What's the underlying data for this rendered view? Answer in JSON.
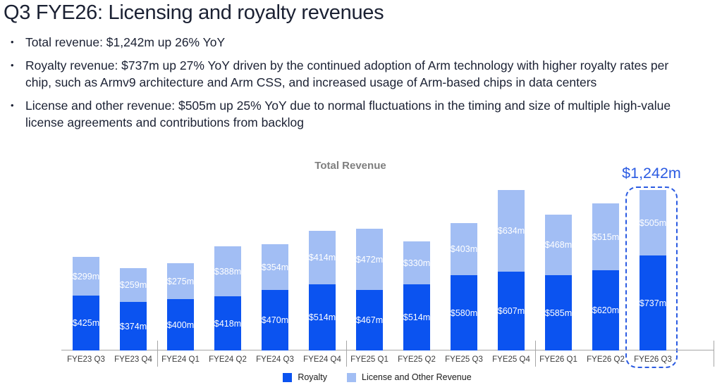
{
  "title": "Q3 FYE26: Licensing and royalty revenues",
  "bullets": [
    "Total revenue: $1,242m up 26% YoY",
    "Royalty revenue: $737m up 27% YoY driven by the continued adoption of Arm technology with higher royalty rates per chip, such as Armv9 architecture and Arm CSS, and increased usage of Arm-based chips in data centers",
    "License and other revenue: $505m up 25% YoY due to normal fluctuations in the timing and size of multiple high-value license agreements and contributions from backlog"
  ],
  "colors": {
    "text": "#1b2133",
    "accent_blue": "#2b5be2",
    "chart_title_gray": "#7f7f7f",
    "axis_gray": "#a6a6a6",
    "value_label": "#ffffff"
  },
  "chart_data": {
    "type": "bar",
    "stacked": true,
    "title": "Total Revenue",
    "categories": [
      "FYE23 Q3",
      "FYE23 Q4",
      "FYE24 Q1",
      "FYE24 Q2",
      "FYE24 Q3",
      "FYE24 Q4",
      "FYE25 Q1",
      "FYE25 Q2",
      "FYE25 Q3",
      "FYE25 Q4",
      "FYE26 Q1",
      "FYE26 Q2",
      "FYE26 Q3"
    ],
    "series": [
      {
        "name": "Royalty",
        "color": "#0b53f0",
        "values": [
          425,
          374,
          400,
          418,
          470,
          514,
          467,
          514,
          580,
          607,
          585,
          620,
          737
        ],
        "labels": [
          "$425m",
          "$374m",
          "$400m",
          "$418m",
          "$470m",
          "$514m",
          "$467m",
          "$514m",
          "$580m",
          "$607m",
          "$585m",
          "$620m",
          "$737m"
        ]
      },
      {
        "name": "License and Other Revenue",
        "color": "#a2bef4",
        "values": [
          299,
          259,
          275,
          388,
          354,
          414,
          472,
          330,
          403,
          634,
          468,
          515,
          505
        ],
        "labels": [
          "$299m",
          "$259m",
          "$275m",
          "$388m",
          "$354m",
          "$414m",
          "$472m",
          "$330m",
          "$403m",
          "$634m",
          "$468m",
          "$515m",
          "$505m"
        ]
      }
    ],
    "ylim": [
      0,
      1270
    ],
    "grid": false,
    "legend_position": "bottom",
    "year_separators_after_index": [
      1,
      5,
      9
    ],
    "highlight": {
      "category": "FYE26 Q3",
      "total_label": "$1,242m"
    }
  }
}
